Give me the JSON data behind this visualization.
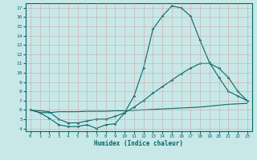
{
  "xlabel": "Humidex (Indice chaleur)",
  "background_color": "#c8e8e8",
  "grid_color": "#b0c8c8",
  "line_color": "#006868",
  "xlim": [
    -0.5,
    23.5
  ],
  "ylim": [
    3.7,
    17.5
  ],
  "yticks": [
    4,
    5,
    6,
    7,
    8,
    9,
    10,
    11,
    12,
    13,
    14,
    15,
    16,
    17
  ],
  "xticks": [
    0,
    1,
    2,
    3,
    4,
    5,
    6,
    7,
    8,
    9,
    10,
    11,
    12,
    13,
    14,
    15,
    16,
    17,
    18,
    19,
    20,
    21,
    22,
    23
  ],
  "line1_x": [
    0,
    1,
    2,
    3,
    4,
    5,
    6,
    7,
    8,
    9,
    10,
    11,
    12,
    13,
    14,
    15,
    16,
    17,
    18,
    19,
    20,
    21,
    22,
    23
  ],
  "line1_y": [
    6.0,
    5.7,
    5.1,
    4.4,
    4.2,
    4.2,
    4.4,
    4.0,
    4.4,
    4.5,
    5.7,
    7.5,
    10.5,
    14.7,
    16.1,
    17.2,
    17.0,
    16.1,
    13.5,
    11.1,
    9.5,
    8.0,
    7.5,
    7.0
  ],
  "line2_x": [
    0,
    2,
    3,
    4,
    5,
    6,
    7,
    8,
    9,
    10,
    11,
    12,
    13,
    14,
    15,
    16,
    17,
    18,
    19,
    20,
    21,
    22,
    23
  ],
  "line2_y": [
    6.0,
    5.8,
    5.0,
    4.6,
    4.6,
    4.8,
    5.0,
    5.0,
    5.3,
    5.7,
    6.3,
    7.0,
    7.8,
    8.5,
    9.2,
    9.9,
    10.5,
    11.0,
    11.0,
    10.5,
    9.5,
    8.0,
    7.0
  ],
  "line3_x": [
    0,
    1,
    2,
    3,
    4,
    5,
    6,
    7,
    8,
    9,
    10,
    11,
    12,
    13,
    14,
    15,
    16,
    17,
    18,
    19,
    20,
    21,
    22,
    23
  ],
  "line3_y": [
    6.0,
    5.7,
    5.7,
    5.8,
    5.8,
    5.8,
    5.85,
    5.85,
    5.85,
    5.9,
    5.9,
    5.95,
    6.0,
    6.05,
    6.1,
    6.15,
    6.2,
    6.25,
    6.3,
    6.4,
    6.5,
    6.6,
    6.65,
    6.7
  ]
}
